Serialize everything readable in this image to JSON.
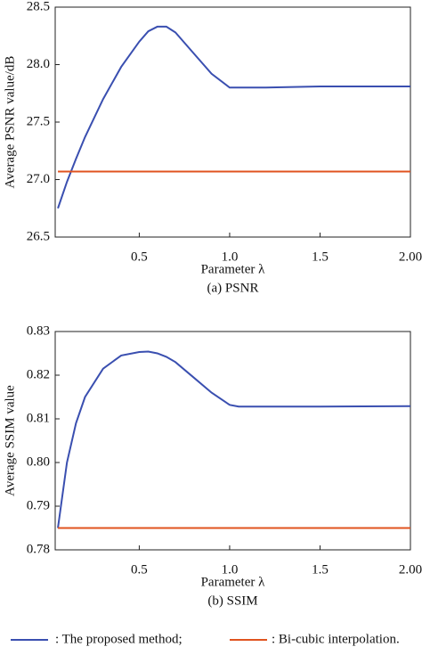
{
  "chart_data": [
    {
      "type": "line",
      "caption": "(a) PSNR",
      "xlabel": "Parameter λ",
      "ylabel": "Average PSNR value/dB",
      "xlim": [
        0.035,
        2.0
      ],
      "xticks": [
        0.5,
        {
          "value": 1,
          "label": "1.0"
        },
        1.5,
        {
          "value": 2,
          "label": "2.00"
        }
      ],
      "ylim": [
        26.5,
        28.5
      ],
      "yticks": [
        26.5,
        {
          "value": 27,
          "label": "27.0"
        },
        27.5,
        {
          "value": 28,
          "label": "28.0"
        },
        28.5
      ],
      "series": [
        {
          "name": ": The proposed method;",
          "color": "#3a4fb0",
          "x": [
            0.05,
            0.1,
            0.15,
            0.2,
            0.3,
            0.4,
            0.5,
            0.55,
            0.6,
            0.65,
            0.7,
            0.8,
            0.9,
            1.0,
            1.05,
            1.2,
            1.5,
            2.0
          ],
          "values": [
            26.75,
            26.98,
            27.18,
            27.37,
            27.7,
            27.98,
            28.2,
            28.29,
            28.33,
            28.33,
            28.28,
            28.1,
            27.92,
            27.8,
            27.8,
            27.8,
            27.81,
            27.81
          ]
        },
        {
          "name": ": Bi-cubic interpolation.",
          "color": "#e0531f",
          "x": [
            0.05,
            2.0
          ],
          "values": [
            27.07,
            27.07
          ]
        }
      ]
    },
    {
      "type": "line",
      "caption": "(b) SSIM",
      "xlabel": "Parameter λ",
      "ylabel": "Average SSIM value",
      "xlim": [
        0.035,
        2.0
      ],
      "xticks": [
        0.5,
        {
          "value": 1,
          "label": "1.0"
        },
        1.5,
        {
          "value": 2,
          "label": "2.00"
        }
      ],
      "ylim": [
        0.78,
        0.83
      ],
      "yticks": [
        0.78,
        0.79,
        {
          "value": 0.8,
          "label": "0.80"
        },
        0.81,
        0.82,
        0.83
      ],
      "series": [
        {
          "color": "#3a4fb0",
          "x": [
            0.05,
            0.1,
            0.15,
            0.2,
            0.3,
            0.4,
            0.5,
            0.55,
            0.6,
            0.65,
            0.7,
            0.8,
            0.9,
            1.0,
            1.05,
            1.2,
            1.5,
            2.0
          ],
          "values": [
            0.785,
            0.8,
            0.809,
            0.815,
            0.8215,
            0.8245,
            0.8253,
            0.8254,
            0.825,
            0.8242,
            0.823,
            0.8195,
            0.816,
            0.8132,
            0.8128,
            0.8128,
            0.8128,
            0.8129
          ]
        },
        {
          "color": "#e0531f",
          "x": [
            0.05,
            2.0
          ],
          "values": [
            0.785,
            0.785
          ]
        }
      ]
    }
  ]
}
